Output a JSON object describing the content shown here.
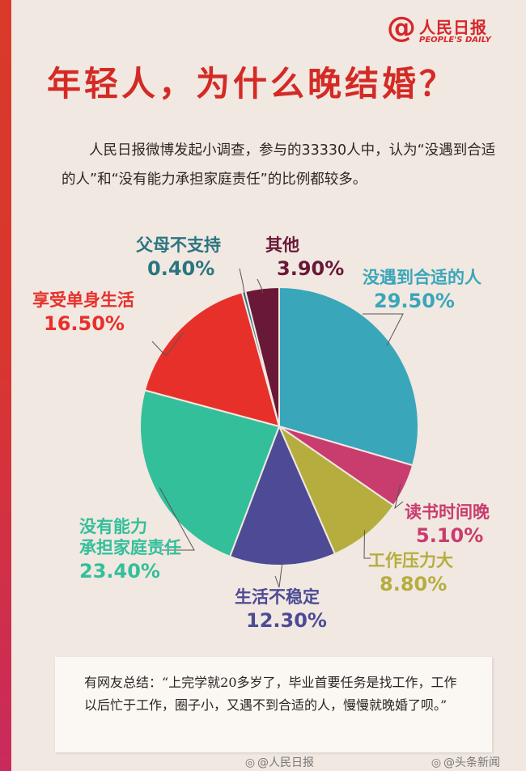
{
  "header": {
    "logo_symbol": "@",
    "logo_name": "人民日报",
    "logo_sub": "PEOPLE'S DAILY",
    "title": "年轻人，为什么晚结婚？"
  },
  "intro": "人民日报微博发起小调查，参与的33330人中，认为“没遇到合适的人”和“没有能力承担家庭责任”的比例都较多。",
  "chart_data": {
    "type": "pie",
    "title": "年轻人，为什么晚结婚？",
    "slices": [
      {
        "label": "没遇到合适的人",
        "value": 29.5,
        "display": "29.50%",
        "color": "#3aa6b9"
      },
      {
        "label": "读书时间晚",
        "value": 5.1,
        "display": "5.10%",
        "color": "#c93c6e"
      },
      {
        "label": "工作压力大",
        "value": 8.8,
        "display": "8.80%",
        "color": "#b6ad3f"
      },
      {
        "label": "生活不稳定",
        "value": 12.3,
        "display": "12.30%",
        "color": "#4d4b95"
      },
      {
        "label_lines": [
          "没有能力",
          "承担家庭责任"
        ],
        "label": "没有能力承担家庭责任",
        "value": 23.4,
        "display": "23.40%",
        "color": "#33bf9a"
      },
      {
        "label": "享受单身生活",
        "value": 16.5,
        "display": "16.50%",
        "color": "#e8302b"
      },
      {
        "label": "父母不支持",
        "value": 0.4,
        "display": "0.40%",
        "color": "#2a7580"
      },
      {
        "label": "其他",
        "value": 3.9,
        "display": "3.90%",
        "color": "#6a1838"
      }
    ]
  },
  "note": "有网友总结：“上完学就20多岁了，毕业首要任务是找工作，工作以后忙于工作，圈子小，又遇不到合适的人，慢慢就晚婚了呗。”",
  "footer": {
    "left": "@人民日报",
    "right": "@头条新闻"
  }
}
